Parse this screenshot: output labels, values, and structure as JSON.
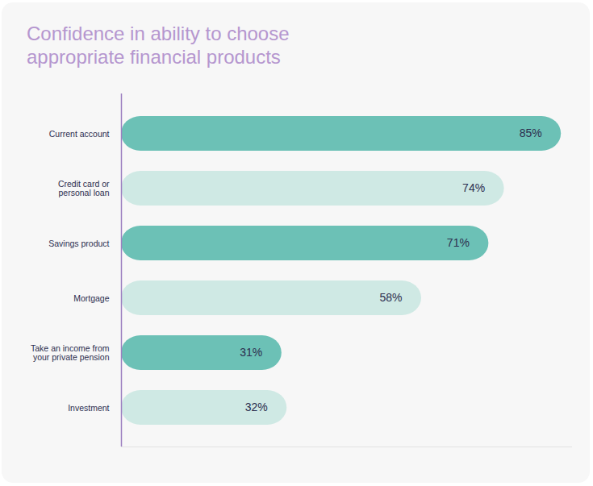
{
  "chart_data": {
    "type": "bar",
    "orientation": "horizontal",
    "title": "Confidence in ability to choose appropriate financial products",
    "categories": [
      "Current account",
      "Credit card or personal loan",
      "Savings product",
      "Mortgage",
      "Take an income from your private pension",
      "Investment"
    ],
    "values": [
      85,
      74,
      71,
      58,
      31,
      32
    ],
    "value_labels": [
      "85%",
      "74%",
      "71%",
      "58%",
      "31%",
      "32%"
    ],
    "colors": [
      "#6cc1b6",
      "#cfe9e4",
      "#6cc1b6",
      "#cfe9e4",
      "#6cc1b6",
      "#cfe9e4"
    ],
    "xlim": [
      0,
      87
    ],
    "xticks": [],
    "grid": false,
    "data_labels": true,
    "tick_labels": "y"
  }
}
